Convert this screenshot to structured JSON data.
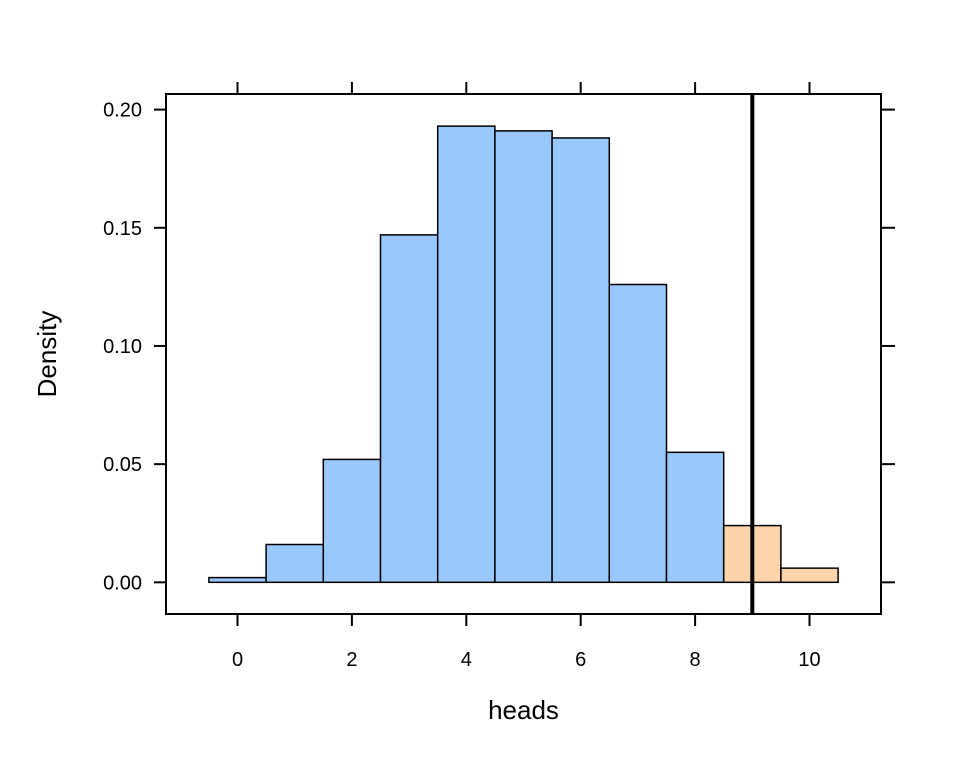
{
  "chart_data": {
    "type": "bar",
    "xlabel": "heads",
    "ylabel": "Density",
    "xlim": [
      -1.25,
      11.25
    ],
    "ylim": [
      -0.0134,
      0.2066
    ],
    "x_ticks": [
      0,
      2,
      4,
      6,
      8,
      10
    ],
    "x_tick_labels": [
      "0",
      "2",
      "4",
      "6",
      "8",
      "10"
    ],
    "y_ticks": [
      0.0,
      0.05,
      0.1,
      0.15,
      0.2
    ],
    "y_tick_labels": [
      "0.00",
      "0.05",
      "0.10",
      "0.15",
      "0.20"
    ],
    "bin_width": 1,
    "bins": [
      {
        "x": 0,
        "density": 0.002,
        "group": "below"
      },
      {
        "x": 1,
        "density": 0.016,
        "group": "below"
      },
      {
        "x": 2,
        "density": 0.052,
        "group": "below"
      },
      {
        "x": 3,
        "density": 0.147,
        "group": "below"
      },
      {
        "x": 4,
        "density": 0.193,
        "group": "below"
      },
      {
        "x": 5,
        "density": 0.191,
        "group": "below"
      },
      {
        "x": 6,
        "density": 0.188,
        "group": "below"
      },
      {
        "x": 7,
        "density": 0.126,
        "group": "below"
      },
      {
        "x": 8,
        "density": 0.055,
        "group": "below"
      },
      {
        "x": 9,
        "density": 0.024,
        "group": "above"
      },
      {
        "x": 10,
        "density": 0.006,
        "group": "above"
      }
    ],
    "reference_line_x": 9,
    "colors": {
      "below": "#99c8ff",
      "above": "#ffd4aa",
      "outline": "#000000",
      "reference_line": "#000000"
    },
    "grid": false,
    "legend": "none"
  }
}
